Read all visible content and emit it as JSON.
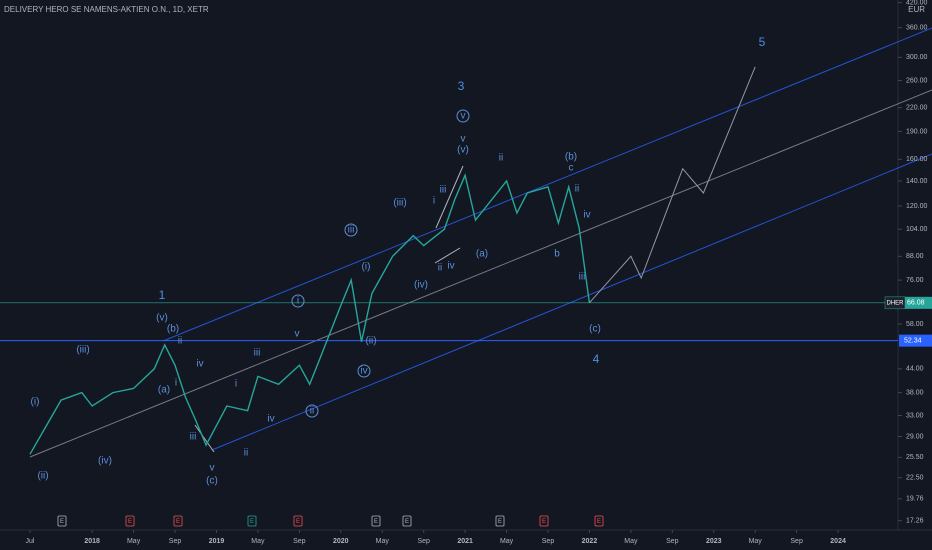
{
  "chart_data": {
    "type": "line",
    "title": "DELIVERY HERO SE NAMENS-AKTIEN O.N., 1D, XETR",
    "currency": "EUR",
    "log_scale": true,
    "ylim": [
      16.3,
      427
    ],
    "yticks": [
      {
        "value": 17.26,
        "label": "17.26"
      },
      {
        "value": 19.76,
        "label": "19.76"
      },
      {
        "value": 22.5,
        "label": "22.50"
      },
      {
        "value": 25.5,
        "label": "25.50"
      },
      {
        "value": 29,
        "label": "29.00"
      },
      {
        "value": 33,
        "label": "33.00"
      },
      {
        "value": 38,
        "label": "38.00"
      },
      {
        "value": 44,
        "label": "44.00"
      },
      {
        "value": 58,
        "label": "58.00"
      },
      {
        "value": 76,
        "label": "76.00"
      },
      {
        "value": 88,
        "label": "88.00"
      },
      {
        "value": 104,
        "label": "104.00"
      },
      {
        "value": 120,
        "label": "120.00"
      },
      {
        "value": 140,
        "label": "140.00"
      },
      {
        "value": 160,
        "label": "160.00"
      },
      {
        "value": 190,
        "label": "190.00"
      },
      {
        "value": 220,
        "label": "220.00"
      },
      {
        "value": 260,
        "label": "260.00"
      },
      {
        "value": 300,
        "label": "300.00"
      },
      {
        "value": 360,
        "label": "360.00"
      },
      {
        "value": 420,
        "label": "420.00"
      }
    ],
    "xticks": [
      {
        "value": "2017-07",
        "label": "Jul"
      },
      {
        "value": "2018-01",
        "label": "2018"
      },
      {
        "value": "2018-05",
        "label": "May"
      },
      {
        "value": "2018-09",
        "label": "Sep"
      },
      {
        "value": "2019-01",
        "label": "2019"
      },
      {
        "value": "2019-05",
        "label": "May"
      },
      {
        "value": "2019-09",
        "label": "Sep"
      },
      {
        "value": "2020-01",
        "label": "2020"
      },
      {
        "value": "2020-05",
        "label": "May"
      },
      {
        "value": "2020-09",
        "label": "Sep"
      },
      {
        "value": "2021-01",
        "label": "2021"
      },
      {
        "value": "2021-05",
        "label": "May"
      },
      {
        "value": "2021-09",
        "label": "Sep"
      },
      {
        "value": "2022-01",
        "label": "2022"
      },
      {
        "value": "2022-05",
        "label": "May"
      },
      {
        "value": "2022-09",
        "label": "Sep"
      },
      {
        "value": "2023-01",
        "label": "2023"
      },
      {
        "value": "2023-05",
        "label": "May"
      },
      {
        "value": "2023-09",
        "label": "Sep"
      },
      {
        "value": "2024-01",
        "label": "2024"
      }
    ],
    "series": [
      {
        "color": "#26a69a",
        "x": [
          "2017-07",
          "2017-10",
          "2017-12",
          "2018-01",
          "2018-03",
          "2018-05",
          "2018-07",
          "2018-08",
          "2018-09",
          "2018-10",
          "2018-11",
          "2018-12",
          "2019-02",
          "2019-04",
          "2019-05",
          "2019-07",
          "2019-09",
          "2019-10",
          "2019-11",
          "2020-01",
          "2020-02",
          "2020-03",
          "2020-04",
          "2020-06",
          "2020-08",
          "2020-09",
          "2020-11",
          "2020-12",
          "2021-01",
          "2021-02",
          "2021-05",
          "2021-06",
          "2021-07",
          "2021-09",
          "2021-10",
          "2021-11",
          "2021-12",
          "2022-01"
        ],
        "values": [
          26,
          36.3,
          38,
          35,
          38,
          39,
          44,
          51,
          45,
          37,
          32,
          27.5,
          35,
          34,
          42,
          40,
          45,
          40,
          47,
          65,
          76,
          52,
          70,
          88,
          100,
          94,
          104,
          125,
          145,
          110,
          140,
          115,
          130,
          135,
          108,
          135,
          105,
          66.08
        ]
      },
      {
        "color": "#9598a1",
        "x": [
          "2022-01",
          "2022-05",
          "2022-06",
          "2022-10",
          "2022-12",
          "2023-05"
        ],
        "values": [
          66.08,
          88,
          77,
          151,
          130,
          283
        ]
      }
    ],
    "last_price": {
      "symbol": "DHER",
      "value": 66.08,
      "label": "66.08"
    },
    "level": {
      "value": 52.34,
      "label": "52.34"
    },
    "annotations": [
      "1",
      "(v)",
      "(b)",
      "ii",
      "(iii)",
      "(i)",
      "(iv)",
      "(ii)",
      "(a)",
      "i",
      "iv",
      "iii",
      "v",
      "(c)",
      "ii",
      "i",
      "iii",
      "iv",
      "v",
      "i",
      "ii",
      "iii",
      "iv",
      "(i)",
      "(ii)",
      "(iii)",
      "(iv)",
      "i",
      "iii",
      "ii",
      "iv",
      "3",
      "v",
      "v",
      "(v)",
      "ii",
      "(a)",
      "(b)",
      "c",
      "ii",
      "iv",
      "b",
      "iii",
      "(c)",
      "4",
      "5"
    ],
    "events": [
      "E",
      "E",
      "E",
      "E",
      "E",
      "E",
      "E",
      "E",
      "E",
      "E"
    ]
  }
}
